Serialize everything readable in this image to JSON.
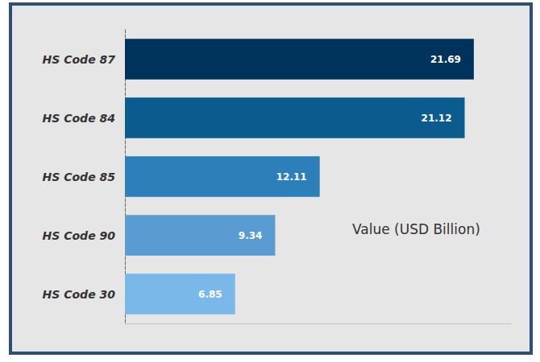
{
  "chart_data": {
    "type": "bar",
    "orientation": "horizontal",
    "categories": [
      "HS Code 87",
      "HS Code 84",
      "HS Code 85",
      "HS Code 90",
      "HS Code 30"
    ],
    "values": [
      21.69,
      21.12,
      12.11,
      9.34,
      6.85
    ],
    "colors": [
      "#00335c",
      "#0b5b8e",
      "#2d7fb9",
      "#5a9bd2",
      "#7ab8ea"
    ],
    "xlabel": "Value (USD Billion)",
    "xlim": [
      0,
      24
    ],
    "xticks": [
      0,
      24
    ],
    "grid": false,
    "data_labels": true,
    "tick_labels": "y"
  }
}
